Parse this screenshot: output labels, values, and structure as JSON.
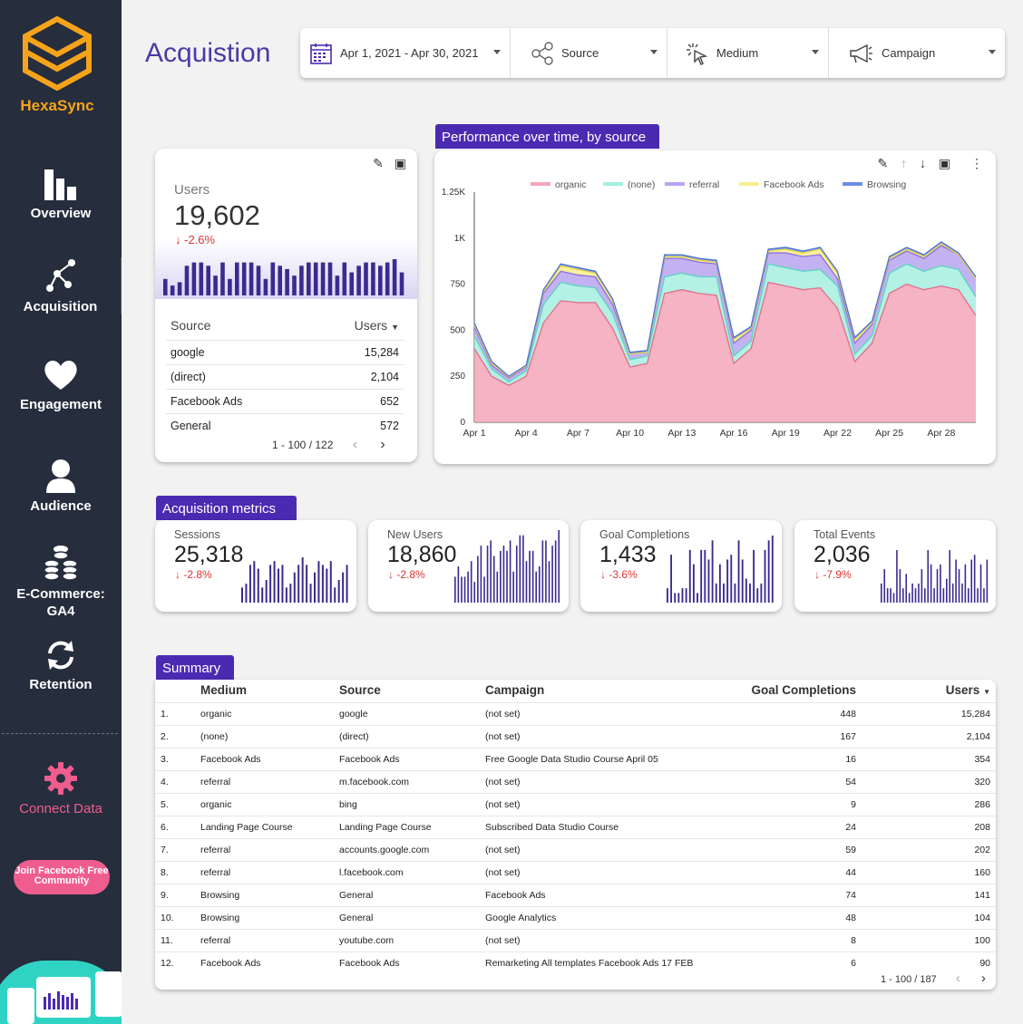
{
  "brand": {
    "name": "HexaSync",
    "logo_color": "#f5a31a"
  },
  "sidebar": {
    "items": [
      {
        "label": "Overview",
        "icon": "bar-chart-icon"
      },
      {
        "label": "Acquisition",
        "icon": "network-icon"
      },
      {
        "label": "Engagement",
        "icon": "heart-icon"
      },
      {
        "label": "Audience",
        "icon": "user-icon"
      },
      {
        "label": "E-Commerce: GA4",
        "icon": "coins-icon"
      },
      {
        "label": "Retention",
        "icon": "refresh-icon"
      }
    ],
    "connect": {
      "label": "Connect Data",
      "icon": "gear-icon"
    },
    "join_label": "Join Facebook Free Community"
  },
  "header": {
    "title": "Acquistion",
    "filters": [
      {
        "label": "Apr 1, 2021 - Apr 30, 2021",
        "icon": "calendar-icon"
      },
      {
        "label": "Source",
        "icon": "share-icon"
      },
      {
        "label": "Medium",
        "icon": "cursor-click-icon"
      },
      {
        "label": "Campaign",
        "icon": "megaphone-icon"
      }
    ]
  },
  "users_card": {
    "label": "Users",
    "value": "19,602",
    "delta": "-2.6%",
    "sparkline": [
      5,
      3,
      4,
      9,
      10,
      10,
      9,
      6,
      10,
      5,
      10,
      10,
      10,
      9,
      5,
      10,
      9,
      8,
      6,
      9,
      10,
      10,
      10,
      10,
      6,
      10,
      7,
      9,
      10,
      10,
      9,
      10,
      11,
      7
    ],
    "table": {
      "headers": [
        "Source",
        "Users"
      ],
      "rows": [
        [
          "google",
          "15,284"
        ],
        [
          "(direct)",
          "2,104"
        ],
        [
          "Facebook Ads",
          "652"
        ],
        [
          "General",
          "572"
        ]
      ],
      "pager": "1 - 100 / 122"
    }
  },
  "performance": {
    "tag": "Performance over time, by source",
    "chart_data": {
      "type": "area",
      "stacked": true,
      "x": [
        "Apr 1",
        "Apr 2",
        "Apr 3",
        "Apr 4",
        "Apr 5",
        "Apr 6",
        "Apr 7",
        "Apr 8",
        "Apr 9",
        "Apr 10",
        "Apr 11",
        "Apr 12",
        "Apr 13",
        "Apr 14",
        "Apr 15",
        "Apr 16",
        "Apr 17",
        "Apr 18",
        "Apr 19",
        "Apr 20",
        "Apr 21",
        "Apr 22",
        "Apr 23",
        "Apr 24",
        "Apr 25",
        "Apr 26",
        "Apr 27",
        "Apr 28",
        "Apr 29",
        "Apr 30"
      ],
      "xticks": [
        "Apr 1",
        "Apr 4",
        "Apr 7",
        "Apr 10",
        "Apr 13",
        "Apr 16",
        "Apr 19",
        "Apr 22",
        "Apr 25",
        "Apr 28"
      ],
      "yticks": [
        "0",
        "250",
        "500",
        "750",
        "1K",
        "1.25K"
      ],
      "ylim": [
        0,
        1250
      ],
      "legend_position": "top",
      "series": [
        {
          "name": "organic",
          "color": "#f4a6b8",
          "values": [
            400,
            250,
            200,
            250,
            540,
            660,
            650,
            650,
            510,
            300,
            320,
            700,
            720,
            700,
            690,
            320,
            400,
            760,
            740,
            720,
            730,
            620,
            330,
            430,
            700,
            750,
            720,
            740,
            720,
            580
          ]
        },
        {
          "name": "(none)",
          "color": "#a6eee0",
          "values": [
            70,
            40,
            20,
            30,
            100,
            100,
            90,
            80,
            80,
            40,
            40,
            90,
            90,
            90,
            100,
            40,
            40,
            100,
            100,
            100,
            100,
            120,
            40,
            40,
            110,
            110,
            100,
            110,
            110,
            100
          ]
        },
        {
          "name": "referral",
          "color": "#b9a4f0",
          "values": [
            50,
            20,
            20,
            20,
            60,
            60,
            60,
            60,
            50,
            30,
            20,
            100,
            80,
            80,
            70,
            70,
            60,
            60,
            80,
            80,
            80,
            40,
            60,
            60,
            70,
            70,
            70,
            110,
            80,
            100
          ]
        },
        {
          "name": "Facebook Ads",
          "color": "#f7ef8a",
          "values": [
            10,
            10,
            5,
            5,
            10,
            30,
            30,
            20,
            20,
            0,
            0,
            10,
            10,
            10,
            10,
            20,
            10,
            10,
            20,
            20,
            30,
            30,
            20,
            10,
            10,
            10,
            10,
            10,
            0,
            0
          ]
        },
        {
          "name": "Browsing",
          "color": "#6a8fe8",
          "values": [
            10,
            10,
            5,
            5,
            10,
            10,
            10,
            10,
            10,
            10,
            10,
            10,
            10,
            10,
            10,
            10,
            10,
            10,
            10,
            10,
            10,
            10,
            10,
            10,
            10,
            10,
            10,
            10,
            10,
            10
          ]
        }
      ]
    }
  },
  "acq_metrics": {
    "tag": "Acquisition metrics",
    "cards": [
      {
        "label": "Sessions",
        "value": "25,318",
        "delta": "-2.8%",
        "spark": [
          4,
          5,
          10,
          11,
          9,
          4,
          6,
          10,
          11,
          9,
          10,
          4,
          5,
          8,
          10,
          12,
          10,
          5,
          8,
          11,
          10,
          9,
          11,
          4,
          6,
          8,
          10
        ]
      },
      {
        "label": "New Users",
        "value": "18,860",
        "delta": "-2.8%",
        "spark": [
          5,
          7,
          5,
          5,
          6,
          8,
          4,
          9,
          11,
          5,
          11,
          12,
          9,
          6,
          10,
          11,
          10,
          12,
          6,
          11,
          13,
          13,
          8,
          10,
          10,
          6,
          7,
          12,
          12,
          8,
          11,
          12,
          14
        ]
      },
      {
        "label": "Goal Completions",
        "value": "1,433",
        "delta": "-3.6%",
        "spark": [
          3,
          10,
          2,
          2,
          3,
          3,
          11,
          8,
          2,
          11,
          11,
          9,
          13,
          4,
          8,
          4,
          9,
          10,
          4,
          13,
          9,
          5,
          4,
          11,
          3,
          4,
          11,
          13,
          14
        ]
      },
      {
        "label": "Total Events",
        "value": "2,036",
        "delta": "-7.9%",
        "spark": [
          4,
          7,
          3,
          3,
          2,
          11,
          7,
          3,
          6,
          2,
          4,
          3,
          4,
          7,
          3,
          11,
          8,
          3,
          7,
          8,
          3,
          5,
          11,
          4,
          9,
          7,
          4,
          8,
          3,
          9,
          10,
          3,
          8,
          3,
          9
        ]
      }
    ]
  },
  "summary": {
    "tag": "Summary",
    "headers": [
      "",
      "Medium",
      "Source",
      "Campaign",
      "Goal Completions",
      "Users"
    ],
    "rows": [
      [
        "1.",
        "organic",
        "google",
        "(not set)",
        "448",
        "15,284"
      ],
      [
        "2.",
        "(none)",
        "(direct)",
        "(not set)",
        "167",
        "2,104"
      ],
      [
        "3.",
        "Facebook Ads",
        "Facebook Ads",
        "Free Google Data Studio Course April 05",
        "16",
        "354"
      ],
      [
        "4.",
        "referral",
        "m.facebook.com",
        "(not set)",
        "54",
        "320"
      ],
      [
        "5.",
        "organic",
        "bing",
        "(not set)",
        "9",
        "286"
      ],
      [
        "6.",
        "Landing Page Course",
        "Landing Page Course",
        "Subscribed Data Studio Course",
        "24",
        "208"
      ],
      [
        "7.",
        "referral",
        "accounts.google.com",
        "(not set)",
        "59",
        "202"
      ],
      [
        "8.",
        "referral",
        "l.facebook.com",
        "(not set)",
        "44",
        "160"
      ],
      [
        "9.",
        "Browsing",
        "General",
        "Facebook Ads",
        "74",
        "141"
      ],
      [
        "10.",
        "Browsing",
        "General",
        "Google Analytics",
        "48",
        "104"
      ],
      [
        "11.",
        "referral",
        "youtube.com",
        "(not set)",
        "8",
        "100"
      ],
      [
        "12.",
        "Facebook Ads",
        "Facebook Ads",
        "Remarketing All templates Facebook Ads 17 FEB",
        "6",
        "90"
      ]
    ],
    "pager": "1 - 100 / 187"
  }
}
